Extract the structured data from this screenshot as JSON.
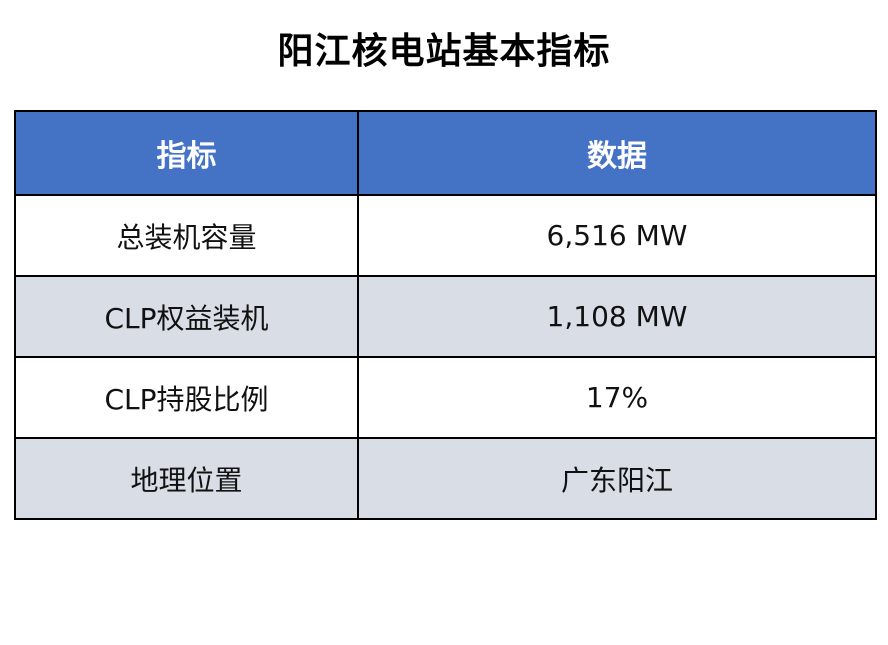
{
  "title": "阳江核电站基本指标",
  "table": {
    "headers": [
      "指标",
      "数据"
    ],
    "rows": [
      {
        "metric": "总装机容量",
        "value": "6,516 MW"
      },
      {
        "metric": "CLP权益装机",
        "value": "1,108 MW"
      },
      {
        "metric": "CLP持股比例",
        "value": "17%"
      },
      {
        "metric": "地理位置",
        "value": "广东阳江"
      }
    ]
  },
  "colors": {
    "header_bg": "#4472c4",
    "header_text": "#ffffff",
    "row_alt_bg": "#d9dde6",
    "row_bg": "#ffffff",
    "border": "#000000"
  }
}
